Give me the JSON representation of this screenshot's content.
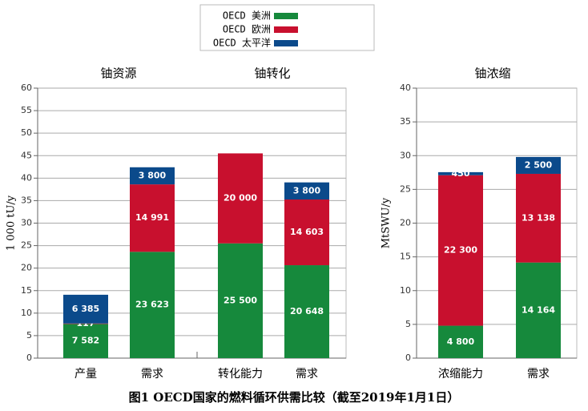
{
  "chart_data": [
    {
      "type": "stacked_bar",
      "group_labels": [
        "铀资源",
        "铀转化"
      ],
      "ylabel": "1 000 tU/y",
      "categories": [
        "产量",
        "需求",
        "转化能力",
        "需求"
      ],
      "ylim": [
        0,
        60
      ],
      "yticks": [
        0,
        5,
        10,
        15,
        20,
        25,
        30,
        35,
        40,
        45,
        50,
        55,
        60
      ],
      "grid": true,
      "series": [
        {
          "name": "OECD 美洲",
          "color": "#16893c",
          "values": [
            7.582,
            23.623,
            25.5,
            20.648
          ],
          "value_labels": [
            "7 582",
            "23 623",
            "25 500",
            "20 648"
          ]
        },
        {
          "name": "OECD 欧洲",
          "color": "#c8102e",
          "values": [
            0.117,
            14.991,
            20.0,
            14.603
          ],
          "value_labels": [
            "117",
            "14 991",
            "20 000",
            "14 603"
          ]
        },
        {
          "name": "OECD 太平洋",
          "color": "#0b4a8b",
          "values": [
            6.385,
            3.8,
            null,
            3.8
          ],
          "value_labels": [
            "6 385",
            "3 800",
            null,
            "3 800"
          ]
        }
      ]
    },
    {
      "type": "stacked_bar",
      "title": "铀浓缩",
      "ylabel": "MtSWU/y",
      "categories": [
        "浓缩能力",
        "需求"
      ],
      "ylim": [
        0,
        40
      ],
      "yticks": [
        0,
        5,
        10,
        15,
        20,
        25,
        30,
        35,
        40
      ],
      "grid": true,
      "series": [
        {
          "color": "#16893c",
          "values": [
            4.8,
            14.164
          ],
          "value_labels": [
            "4 800",
            "14 164"
          ]
        },
        {
          "color": "#c8102e",
          "values": [
            22.3,
            13.138
          ],
          "value_labels": [
            "22 300",
            "13 138"
          ]
        },
        {
          "color": "#0b4a8b",
          "values": [
            0.45,
            2.5
          ],
          "value_labels": [
            "450",
            "2 500"
          ]
        }
      ]
    }
  ],
  "caption": "图1 OECD国家的燃料循环供需比较（截至2019年1月1日）"
}
